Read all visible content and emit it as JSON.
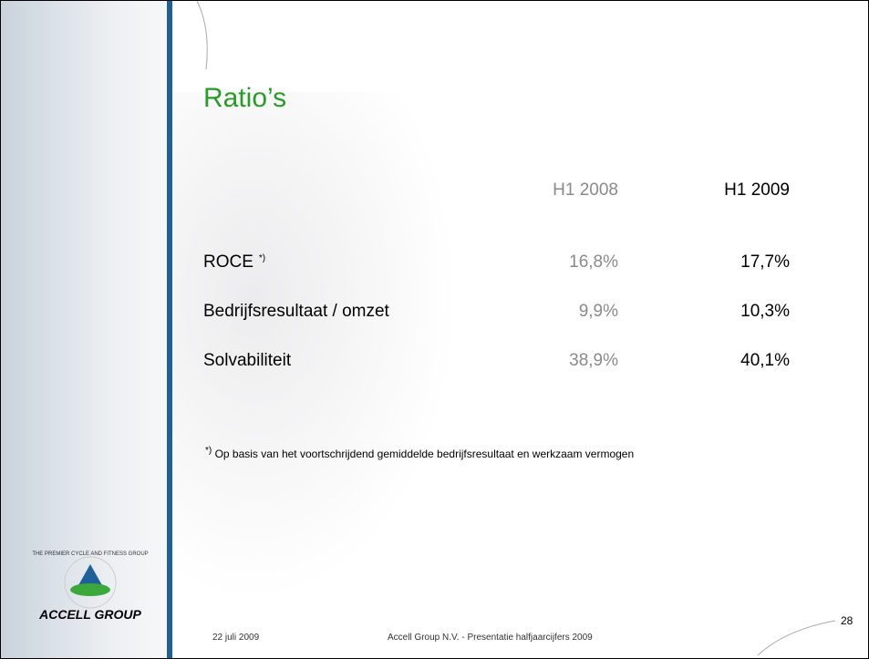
{
  "slide": {
    "title": "Ratio’s",
    "columns": [
      "H1 2008",
      "H1 2009"
    ],
    "rows": [
      {
        "label": "ROCE",
        "note": "*)",
        "values": [
          "16,8%",
          "17,7%"
        ]
      },
      {
        "label": "Bedrijfsresultaat / omzet",
        "values": [
          "9,9%",
          "10,3%"
        ]
      },
      {
        "label": "Solvabiliteit",
        "values": [
          "38,9%",
          "40,1%"
        ]
      }
    ],
    "footnote_mark": "*)",
    "footnote": "Op basis van het voortschrijdend gemiddelde bedrijfsresultaat en werkzaam vermogen",
    "footer_date": "22 juli 2009",
    "footer_text": "Accell Group N.V.  - Presentatie halfjaarcijfers 2009",
    "page_number": "28",
    "logo_text": "ACCELL GROUP",
    "logo_ring": "THE PREMIER CYCLE AND FITNESS GROUP"
  }
}
